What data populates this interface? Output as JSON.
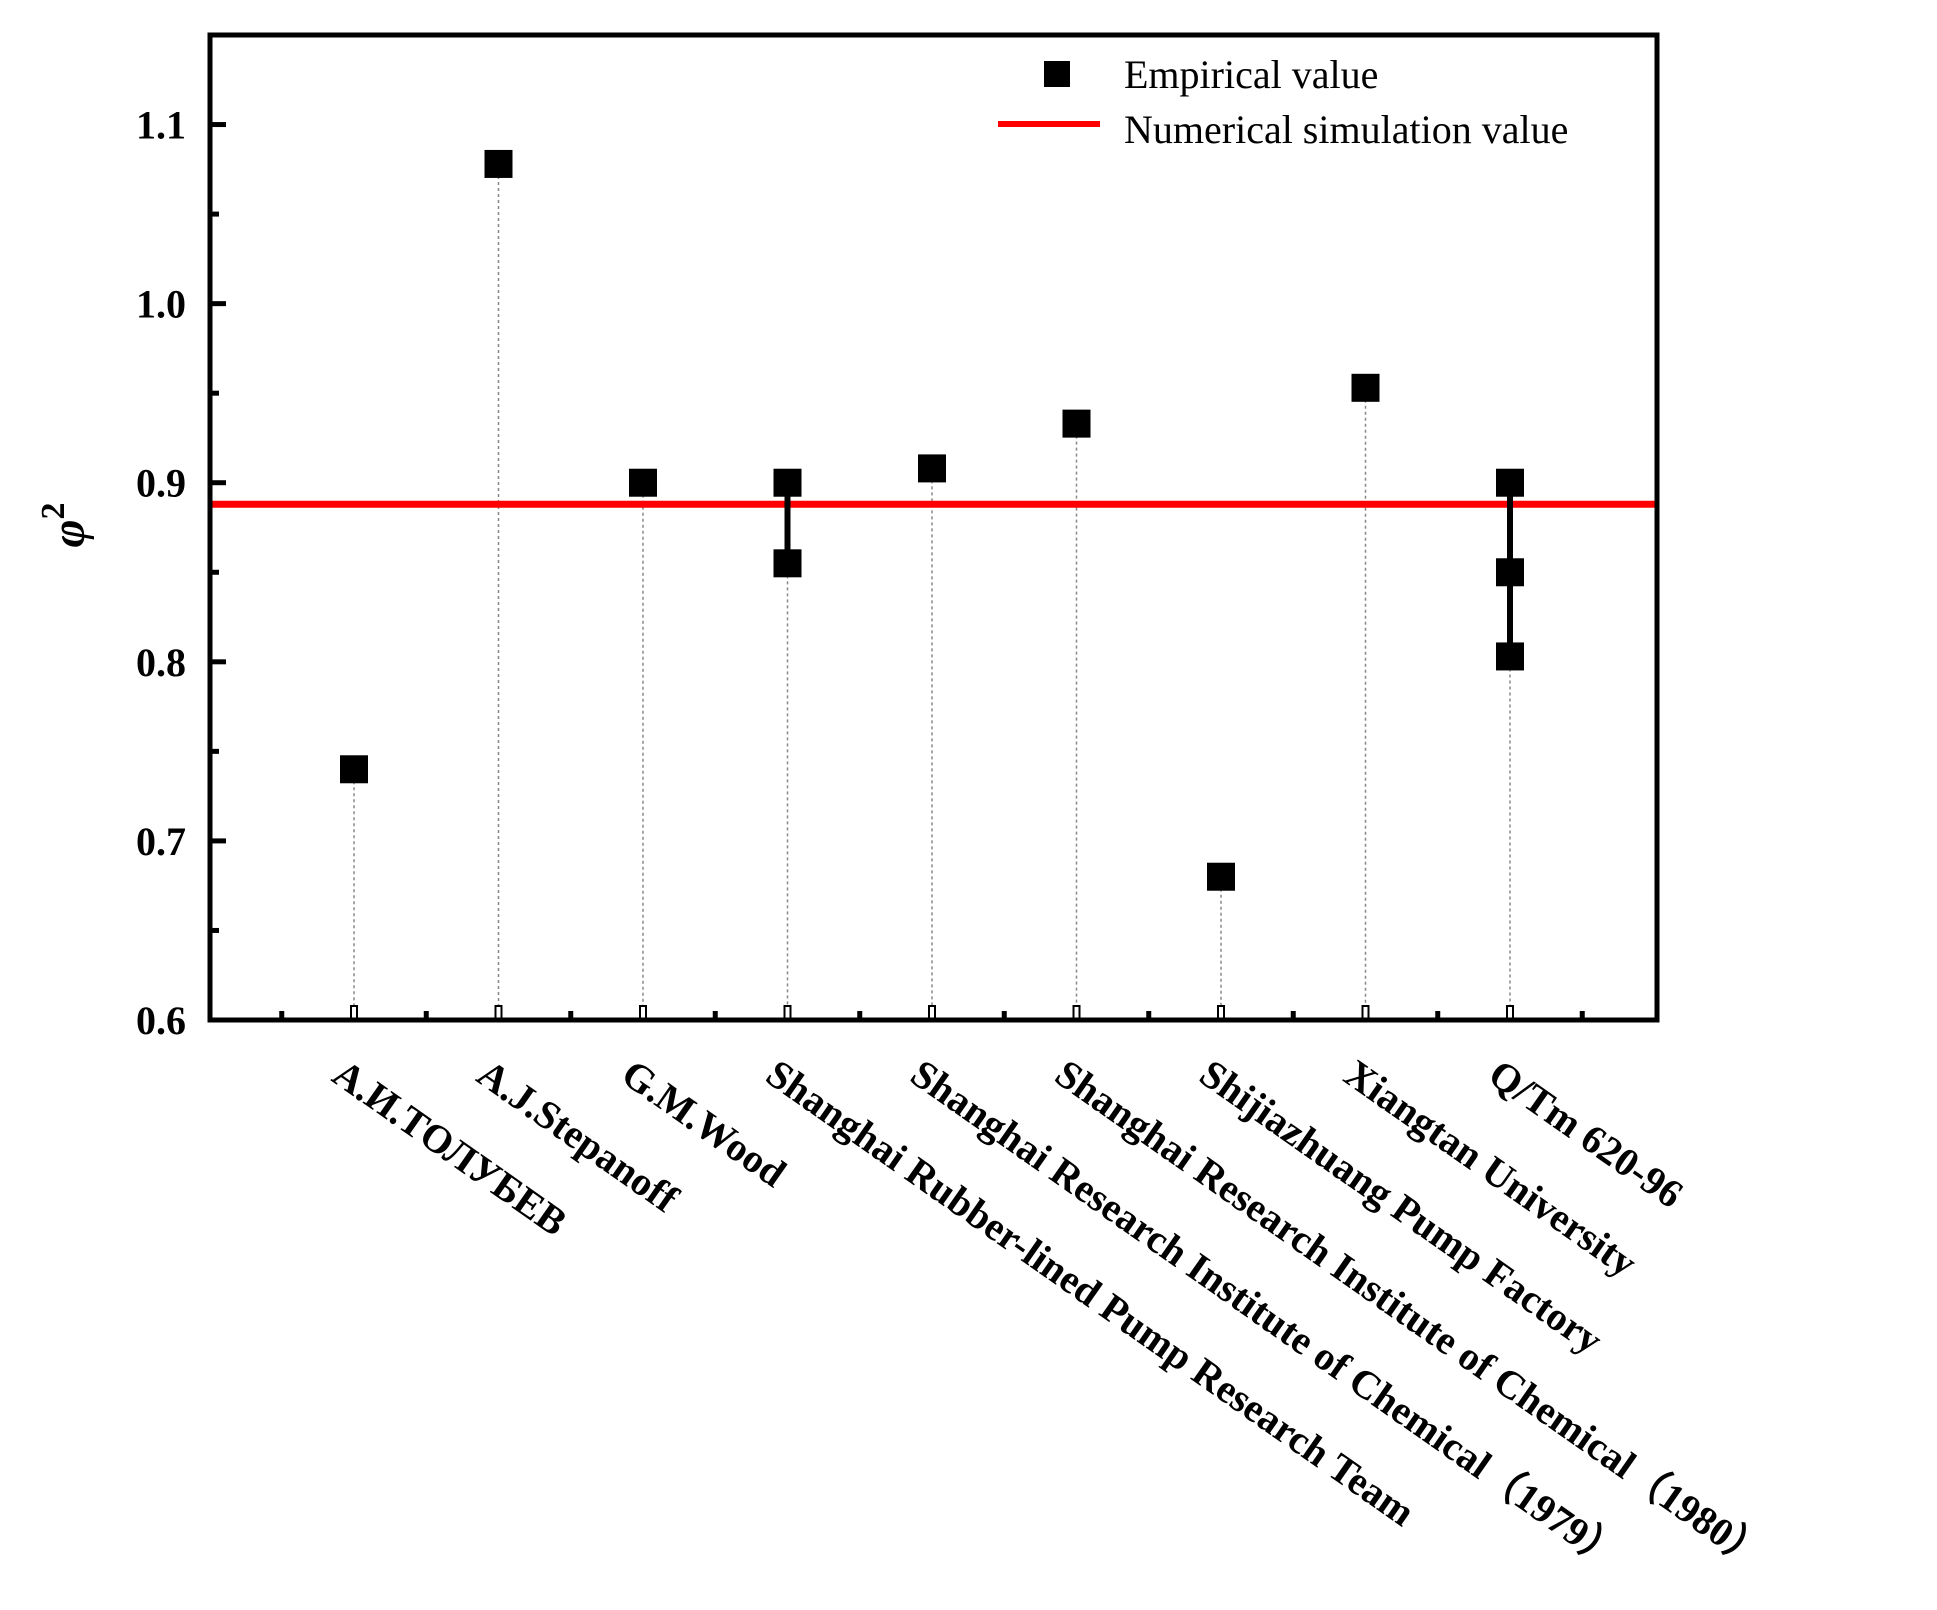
{
  "chart_data": {
    "type": "scatter",
    "title": "",
    "xlabel": "",
    "ylabel": "φ",
    "ylabel_superscript": "2",
    "ylim": [
      0.6,
      1.15
    ],
    "yticks": [
      "0.6",
      "0.7",
      "0.8",
      "0.9",
      "1.0",
      "1.1"
    ],
    "ytick_values": [
      0.6,
      0.7,
      0.8,
      0.9,
      1.0,
      1.1
    ],
    "grid": false,
    "legend_position": "top-right",
    "categories": [
      "А.И.ТОЛУБЕВ",
      "A.J.Stepanoff",
      "G.M.Wood",
      "Shanghai Rubber-lined Pump Research Team",
      "Shanghai Research Institute of Chemical（1979）",
      "Shanghai Research Institute of Chemical（1980）",
      "Shijiazhuang Pump Factory",
      "Xiangtan University",
      "Q/Tm 620-96"
    ],
    "series": [
      {
        "name": "Empirical value",
        "marker": "square",
        "color": "#000000",
        "points": [
          [
            0.74
          ],
          [
            1.078
          ],
          [
            0.9
          ],
          [
            0.9,
            0.855
          ],
          [
            0.908
          ],
          [
            0.933
          ],
          [
            0.68
          ],
          [
            0.953
          ],
          [
            0.9,
            0.85,
            0.803
          ]
        ]
      },
      {
        "name": "Numerical simulation value",
        "marker": "line",
        "color": "#ff0000",
        "value": 0.888
      }
    ]
  }
}
